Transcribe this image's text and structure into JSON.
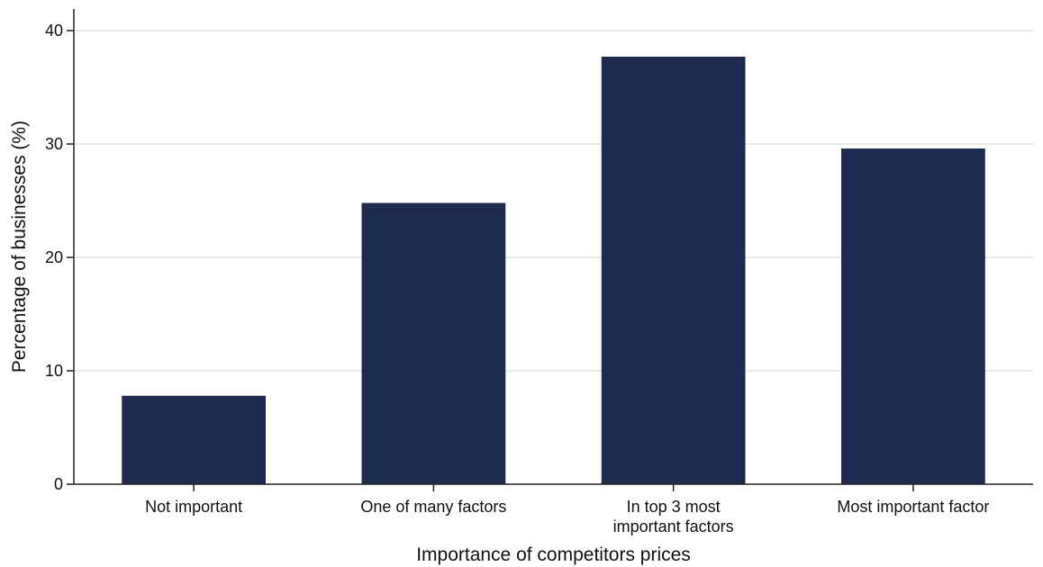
{
  "chart_data": {
    "type": "bar",
    "title": "",
    "xlabel": "Importance of competitors prices",
    "ylabel": "Percentage of businesses (%)",
    "categories": [
      [
        "Not important"
      ],
      [
        "One of many factors"
      ],
      [
        "In top 3 most",
        "important factors"
      ],
      [
        "Most important factor"
      ]
    ],
    "values": [
      7.8,
      24.8,
      37.7,
      29.6
    ],
    "ylim": [
      0,
      40
    ],
    "yticks": [
      0,
      10,
      20,
      30,
      40
    ],
    "grid": true,
    "bar_color": "#1f2a4f",
    "grid_color": "#dcdcdc"
  }
}
